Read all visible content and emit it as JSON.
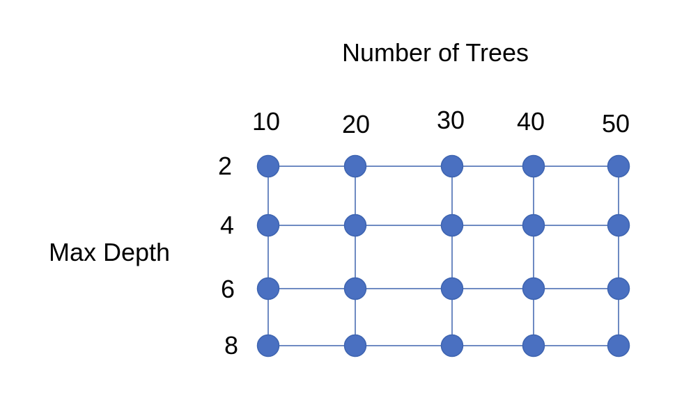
{
  "diagram": {
    "title": "Number of Trees",
    "row_axis_label": "Max Depth",
    "column_labels": [
      "10",
      "20",
      "30",
      "40",
      "50"
    ],
    "row_labels": [
      "2",
      "4",
      "6",
      "8"
    ],
    "colors": {
      "node_fill": "#4a70c1",
      "node_stroke": "#3e64b0",
      "line": "#3f63ad",
      "text": "#000000"
    }
  }
}
